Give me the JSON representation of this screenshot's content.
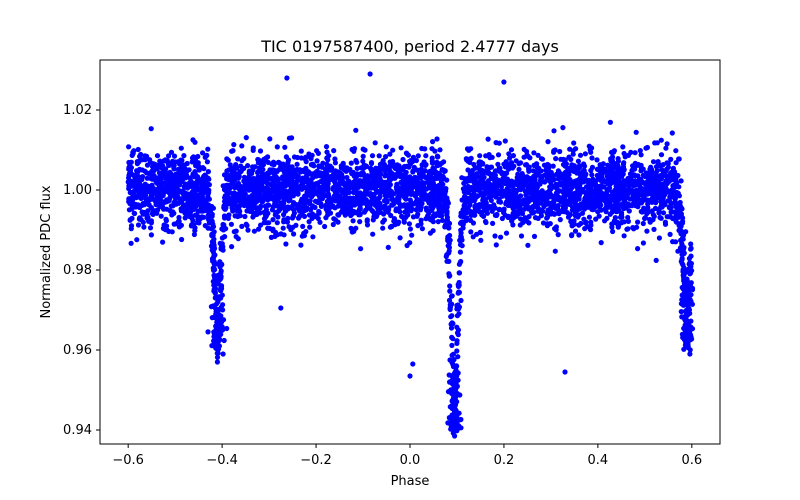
{
  "chart_data": {
    "type": "scatter",
    "title": "TIC 0197587400, period 2.4777 days",
    "xlabel": "Phase",
    "ylabel": "Normalized PDC flux",
    "xlim": [
      -0.66,
      0.66
    ],
    "ylim": [
      0.9365,
      1.0325
    ],
    "xticks": [
      -0.6,
      -0.4,
      -0.2,
      0.0,
      0.2,
      0.4,
      0.6
    ],
    "xtick_labels": [
      "−0.6",
      "−0.4",
      "−0.2",
      "0.0",
      "0.2",
      "0.4",
      "0.6"
    ],
    "yticks": [
      0.94,
      0.96,
      0.98,
      1.0,
      1.02
    ],
    "ytick_labels": [
      "0.94",
      "0.96",
      "0.98",
      "1.00",
      "1.02"
    ],
    "grid": false,
    "legend": "none",
    "colors": {
      "points": "#0000ff",
      "axes": "#000000",
      "background": "#ffffff"
    },
    "series": [
      {
        "x_range": [
          -0.6,
          0.6
        ],
        "baseline": 1.0,
        "scatter_band": [
          0.99,
          1.01
        ],
        "eclipses": [
          {
            "center": -0.41,
            "min_flux": 0.959
          },
          {
            "center": 0.095,
            "min_flux": 0.938
          },
          {
            "center": 0.59,
            "min_flux": 0.959
          }
        ],
        "notable_points": [
          {
            "x": -0.262,
            "y": 1.028
          },
          {
            "x": -0.085,
            "y": 1.029
          },
          {
            "x": 0.2,
            "y": 1.027
          },
          {
            "x": -0.275,
            "y": 0.9705
          },
          {
            "x": 0.33,
            "y": 0.9545
          },
          {
            "x": 0.0,
            "y": 0.9535
          },
          {
            "x": 0.006,
            "y": 0.9565
          },
          {
            "x": 0.095,
            "y": 0.9385
          },
          {
            "x": -0.398,
            "y": 0.959
          },
          {
            "x": 0.596,
            "y": 0.959
          }
        ]
      }
    ]
  }
}
